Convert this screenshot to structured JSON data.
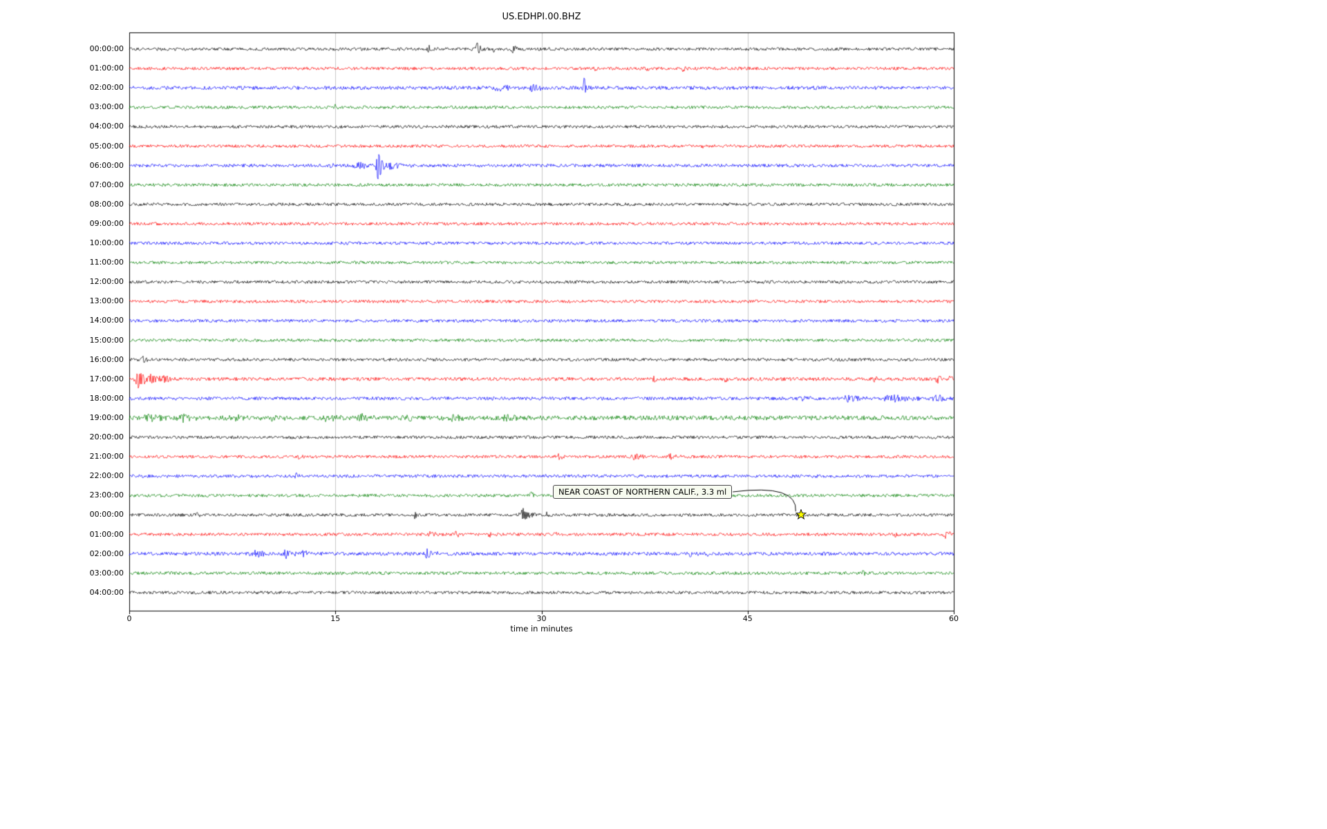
{
  "title": "US.EDHPI.00.BHZ",
  "chart_data": {
    "type": "line",
    "subtype": "seismogram-helicorder",
    "title": "US.EDHPI.00.BHZ",
    "xlabel": "time in minutes",
    "xlim": [
      0,
      60
    ],
    "x_ticks": [
      0,
      15,
      30,
      45,
      60
    ],
    "grid": true,
    "legend": "none",
    "trace_color_cycle": [
      "#000000",
      "#ff0000",
      "#0000ff",
      "#008000"
    ],
    "grid_color": "#c8c8c8",
    "annotation": {
      "text": "NEAR COAST OF NORTHERN CALIF., 3.3 ml",
      "row_index": 24,
      "row_label": "00:00:00",
      "minute": 48.9,
      "marker": "yellow-star",
      "marker_color": "#ffff00"
    },
    "events_format": "[minute, peak_amplitude_px, duration_minutes]",
    "rows": [
      {
        "label": "00:00:00",
        "color": "#000000",
        "noise": 1.0,
        "events": [
          [
            21.8,
            5,
            0.2
          ],
          [
            25.3,
            9,
            0.25
          ],
          [
            26.5,
            4,
            0.2
          ],
          [
            27.9,
            8,
            0.2
          ]
        ]
      },
      {
        "label": "01:00:00",
        "color": "#ff0000",
        "noise": 1.0,
        "events": [
          [
            33.8,
            4,
            0.15
          ],
          [
            37.6,
            4,
            0.25
          ],
          [
            40.3,
            5,
            0.15
          ]
        ]
      },
      {
        "label": "02:00:00",
        "color": "#0000ff",
        "noise": 1.2,
        "events": [
          [
            26.8,
            3,
            1.2
          ],
          [
            29.4,
            8,
            0.4
          ],
          [
            33.1,
            22,
            0.12
          ]
        ]
      },
      {
        "label": "03:00:00",
        "color": "#008000",
        "noise": 1.0,
        "events": [
          [
            15.0,
            4,
            0.2
          ]
        ]
      },
      {
        "label": "04:00:00",
        "color": "#000000",
        "noise": 1.0,
        "events": []
      },
      {
        "label": "05:00:00",
        "color": "#ff0000",
        "noise": 1.0,
        "events": [
          [
            41.6,
            3,
            0.15
          ]
        ]
      },
      {
        "label": "06:00:00",
        "color": "#0000ff",
        "noise": 1.05,
        "events": [
          [
            14.7,
            4,
            0.2
          ],
          [
            16.9,
            4,
            1.0
          ],
          [
            18.1,
            26,
            0.25
          ],
          [
            19.0,
            5,
            0.8
          ]
        ]
      },
      {
        "label": "07:00:00",
        "color": "#008000",
        "noise": 1.0,
        "events": []
      },
      {
        "label": "08:00:00",
        "color": "#000000",
        "noise": 1.0,
        "events": []
      },
      {
        "label": "09:00:00",
        "color": "#ff0000",
        "noise": 1.0,
        "events": []
      },
      {
        "label": "10:00:00",
        "color": "#0000ff",
        "noise": 1.0,
        "events": []
      },
      {
        "label": "11:00:00",
        "color": "#008000",
        "noise": 1.0,
        "events": []
      },
      {
        "label": "12:00:00",
        "color": "#000000",
        "noise": 1.0,
        "events": []
      },
      {
        "label": "13:00:00",
        "color": "#ff0000",
        "noise": 1.0,
        "events": []
      },
      {
        "label": "14:00:00",
        "color": "#0000ff",
        "noise": 1.0,
        "events": []
      },
      {
        "label": "15:00:00",
        "color": "#008000",
        "noise": 1.0,
        "events": []
      },
      {
        "label": "16:00:00",
        "color": "#000000",
        "noise": 1.0,
        "events": [
          [
            1.0,
            5,
            0.2
          ]
        ]
      },
      {
        "label": "17:00:00",
        "color": "#ff0000",
        "noise": 1.15,
        "events": [
          [
            0.7,
            12,
            0.5
          ],
          [
            1.6,
            7,
            0.5
          ],
          [
            2.6,
            5,
            0.4
          ],
          [
            38.2,
            4,
            0.15
          ],
          [
            43.4,
            4,
            0.15
          ],
          [
            54.2,
            4,
            0.2
          ],
          [
            58.8,
            5,
            0.3
          ],
          [
            59.7,
            5,
            0.2
          ]
        ]
      },
      {
        "label": "18:00:00",
        "color": "#0000ff",
        "noise": 1.1,
        "events": [
          [
            48.8,
            4,
            0.6
          ],
          [
            52.3,
            5,
            0.6
          ],
          [
            55.5,
            4,
            1.5
          ],
          [
            58.8,
            5,
            0.6
          ]
        ]
      },
      {
        "label": "19:00:00",
        "color": "#008000",
        "noise": 1.5,
        "events": [
          [
            1.4,
            4,
            0.8
          ],
          [
            3.9,
            5,
            0.8
          ],
          [
            7.5,
            3,
            0.8
          ],
          [
            10.4,
            3,
            0.8
          ],
          [
            14.4,
            4,
            0.6
          ],
          [
            16.9,
            4,
            0.5
          ],
          [
            20.1,
            5,
            0.4
          ],
          [
            23.4,
            4,
            0.8
          ],
          [
            27.4,
            4,
            0.5
          ]
        ]
      },
      {
        "label": "20:00:00",
        "color": "#000000",
        "noise": 1.0,
        "events": []
      },
      {
        "label": "21:00:00",
        "color": "#ff0000",
        "noise": 1.0,
        "events": [
          [
            12.3,
            4,
            0.15
          ],
          [
            31.2,
            4,
            0.3
          ],
          [
            36.8,
            5,
            0.4
          ],
          [
            39.4,
            4,
            0.4
          ]
        ]
      },
      {
        "label": "22:00:00",
        "color": "#0000ff",
        "noise": 1.05,
        "events": [
          [
            12.2,
            4,
            0.25
          ]
        ]
      },
      {
        "label": "23:00:00",
        "color": "#008000",
        "noise": 1.0,
        "events": [
          [
            29.2,
            6,
            0.25
          ]
        ]
      },
      {
        "label": "00:00:00",
        "color": "#000000",
        "noise": 1.0,
        "events": [
          [
            5.0,
            3,
            0.2
          ],
          [
            20.8,
            5,
            0.15
          ],
          [
            28.7,
            8,
            0.5
          ],
          [
            30.4,
            4,
            0.2
          ]
        ]
      },
      {
        "label": "01:00:00",
        "color": "#ff0000",
        "noise": 1.0,
        "events": [
          [
            21.9,
            4,
            0.3
          ],
          [
            23.8,
            4,
            0.25
          ],
          [
            26.2,
            3,
            0.2
          ],
          [
            31.0,
            3,
            0.2
          ],
          [
            55.8,
            4,
            0.25
          ],
          [
            59.4,
            6,
            0.3
          ]
        ]
      },
      {
        "label": "02:00:00",
        "color": "#0000ff",
        "noise": 1.15,
        "events": [
          [
            9.2,
            5,
            0.6
          ],
          [
            11.4,
            6,
            0.6
          ],
          [
            12.6,
            5,
            0.4
          ],
          [
            21.7,
            6,
            0.5
          ],
          [
            40.8,
            3,
            0.3
          ],
          [
            42.0,
            3,
            0.3
          ]
        ]
      },
      {
        "label": "03:00:00",
        "color": "#008000",
        "noise": 1.0,
        "events": [
          [
            24.0,
            4,
            0.15
          ],
          [
            53.4,
            4,
            0.15
          ]
        ]
      },
      {
        "label": "04:00:00",
        "color": "#000000",
        "noise": 1.0,
        "events": []
      }
    ]
  }
}
